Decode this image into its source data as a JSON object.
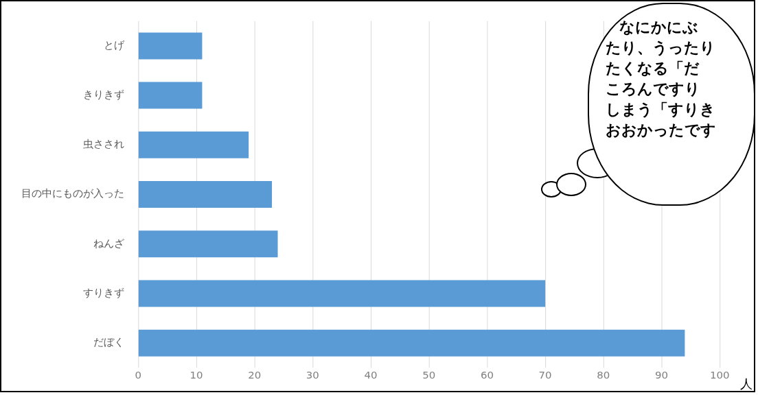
{
  "chart_data": {
    "type": "bar",
    "orientation": "horizontal",
    "categories": [
      "とげ",
      "きりきず",
      "虫さされ",
      "目の中にものが入った",
      "ねんざ",
      "すりきず",
      "だぼく"
    ],
    "values": [
      11,
      11,
      19,
      23,
      24,
      70,
      94
    ],
    "color": "#5b9bd5",
    "xlim": [
      0,
      100
    ],
    "xticks": [
      0,
      10,
      20,
      30,
      40,
      50,
      60,
      70,
      80,
      90,
      100
    ],
    "grid": "x",
    "legend": false,
    "xlabel": "人",
    "annotations": [
      "なにかにぶ",
      "たり、うったり",
      "たくなる「だ",
      "ころんですり",
      "しまう「すりき",
      "おおかったです"
    ]
  }
}
